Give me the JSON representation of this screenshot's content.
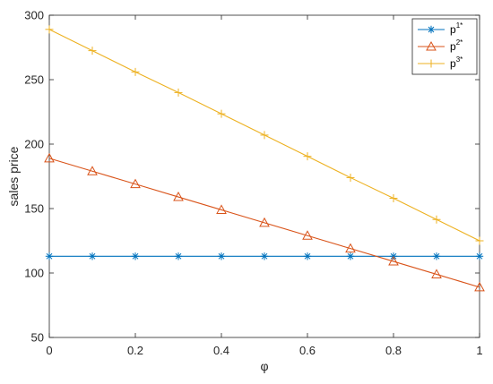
{
  "chart_data": {
    "type": "line",
    "xlabel": "φ",
    "ylabel": "sales price",
    "xlim": [
      0,
      1
    ],
    "ylim": [
      50,
      300
    ],
    "xticks": [
      "0",
      "0.2",
      "0.4",
      "0.6",
      "0.8",
      "1"
    ],
    "yticks": [
      "50",
      "100",
      "150",
      "200",
      "250",
      "300"
    ],
    "grid": false,
    "legend_position": "top-right",
    "x": [
      0,
      0.1,
      0.2,
      0.3,
      0.4,
      0.5,
      0.6,
      0.7,
      0.8,
      0.9,
      1.0
    ],
    "series": [
      {
        "name": "p",
        "sup": "1*",
        "color": "#0072BD",
        "marker": "asterisk",
        "values": [
          113,
          113,
          113,
          113,
          113,
          113,
          113,
          113,
          113,
          113,
          113
        ]
      },
      {
        "name": "p",
        "sup": "2*",
        "color": "#D95319",
        "marker": "triangle",
        "values": [
          189,
          179,
          169,
          159,
          149,
          139,
          129,
          119,
          109,
          99,
          89
        ]
      },
      {
        "name": "p",
        "sup": "3*",
        "color": "#EDB120",
        "marker": "plus",
        "values": [
          289,
          272.5,
          256,
          240,
          223.5,
          207,
          190.5,
          174,
          158,
          141.5,
          125
        ]
      }
    ]
  }
}
